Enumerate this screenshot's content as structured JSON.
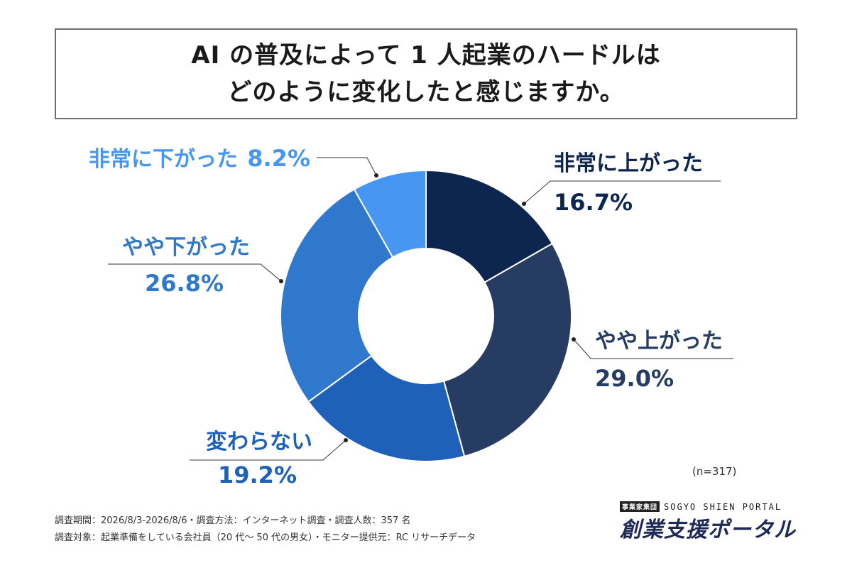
{
  "title": {
    "line1": "AI の普及によって 1 人起業のハードルは",
    "line2": "どのように変化したと感じますか。"
  },
  "chart_data": {
    "type": "pie",
    "donut": true,
    "title": "AI の普及によって 1 人起業のハードルは どのように変化したと感じますか。",
    "categories": [
      "非常に上がった",
      "やや上がった",
      "変わらない",
      "やや下がった",
      "非常に下がった"
    ],
    "values": [
      16.7,
      29.0,
      19.2,
      26.8,
      8.2
    ],
    "value_labels": [
      "16.7%",
      "29.0%",
      "19.2%",
      "26.8%",
      "8.2%"
    ],
    "colors": [
      "#0d2650",
      "#263c63",
      "#1f60b8",
      "#2f78cc",
      "#4797f2"
    ],
    "label_colors": [
      "#0d2650",
      "#263c63",
      "#1f60b8",
      "#2f78cc",
      "#4797f2"
    ]
  },
  "note": "(n=317)",
  "footer": {
    "line1": "調査期間：2026/8/3-2026/8/6・調査方法：インターネット調査・調査人数：357 名",
    "line2": "調査対象：起業準備をしている会社員（20 代〜 50 代の男女）・モニター提供元：RC リサーチデータ"
  },
  "logo": {
    "group": "事業家集団",
    "english": "SOGYO SHIEN PORTAL",
    "japanese": "創業支援ポータル"
  }
}
